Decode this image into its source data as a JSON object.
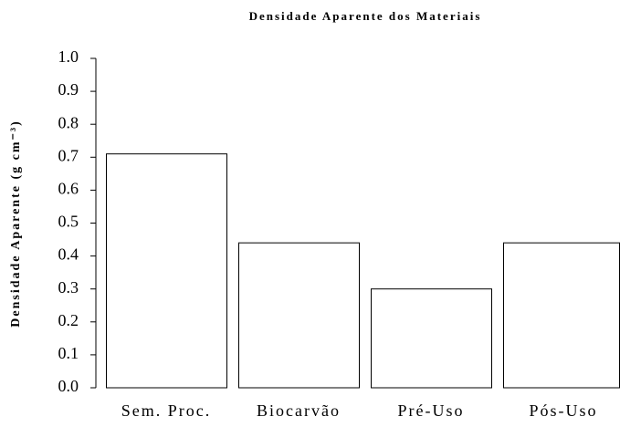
{
  "chart_data": {
    "type": "bar",
    "title": "Densidade Aparente dos Materiais",
    "ylabel": "Densidade Aparente (g cm⁻³)",
    "categories": [
      "Sem. Proc.",
      "Biocarvão",
      "Pré-Uso",
      "Pós-Uso"
    ],
    "values": [
      0.71,
      0.44,
      0.3,
      0.44
    ],
    "color": "#ffffff",
    "ylim": [
      0,
      1
    ],
    "yticks": [
      {
        "value": 0,
        "label": "0.0"
      },
      0.1,
      0.2,
      0.3,
      0.4,
      0.5,
      0.6,
      0.7,
      0.8,
      0.9,
      {
        "value": 1,
        "label": "1.0"
      }
    ],
    "grid": false
  }
}
